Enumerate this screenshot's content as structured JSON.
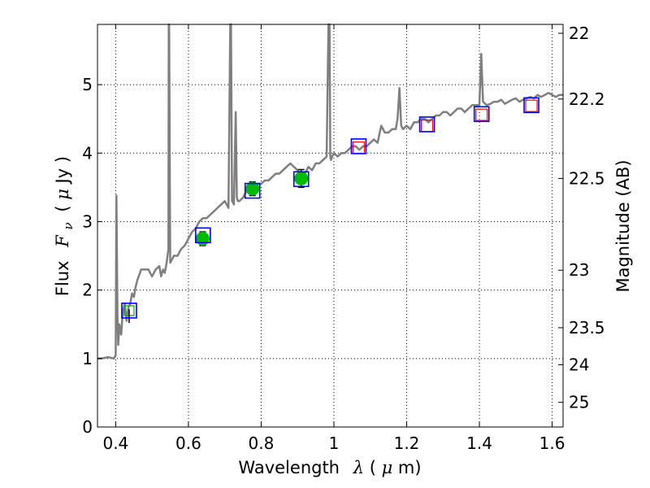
{
  "chart_data": {
    "type": "line",
    "xlabel": "Wavelength",
    "xlabel_symbol": "λ",
    "xlabel_unit_open": " (",
    "xlabel_unit_mu": "μ",
    "xlabel_unit_rest": "m)",
    "ylabel": "Flux",
    "ylabel_symbol": "F",
    "ylabel_symbol_sub": "ν",
    "ylabel_unit_open": "( ",
    "ylabel_unit_mu": "μ",
    "ylabel_unit_rest": "Jy )",
    "ylabel_right": "Magnitude (AB)",
    "xlim": [
      0.35,
      1.63
    ],
    "ylim": [
      0,
      5.88
    ],
    "x_ticks": [
      {
        "value": 0.4,
        "label": "0.4"
      },
      {
        "value": 0.6,
        "label": "0.6"
      },
      {
        "value": 0.8,
        "label": "0.8"
      },
      {
        "value": 1.0,
        "label": "1"
      },
      {
        "value": 1.2,
        "label": "1.2"
      },
      {
        "value": 1.4,
        "label": "1.4"
      },
      {
        "value": 1.6,
        "label": "1.6"
      }
    ],
    "y_ticks": [
      {
        "value": 0,
        "label": "0"
      },
      {
        "value": 1,
        "label": "1"
      },
      {
        "value": 2,
        "label": "2"
      },
      {
        "value": 3,
        "label": "3"
      },
      {
        "value": 4,
        "label": "4"
      },
      {
        "value": 5,
        "label": "5"
      }
    ],
    "right_ticks": [
      {
        "label": "22",
        "flux": 5.75
      },
      {
        "label": "22.2",
        "flux": 4.79
      },
      {
        "label": "22.5",
        "flux": 3.63
      },
      {
        "label": "23",
        "flux": 2.29
      },
      {
        "label": "23.5",
        "flux": 1.45
      },
      {
        "label": "24",
        "flux": 0.91
      },
      {
        "label": "25",
        "flux": 0.36
      }
    ],
    "grid": true,
    "colors": {
      "spectrum": "#7f7f7f",
      "box_model": "#0000ff",
      "box_inner": "#ff0000",
      "point_fill": "#00bb00",
      "errorbar": "#000000",
      "inner_green": "#00aa00"
    },
    "spectrum": {
      "name": "",
      "x": [
        0.35,
        0.36,
        0.38,
        0.395,
        0.4,
        0.402,
        0.405,
        0.407,
        0.41,
        0.415,
        0.42,
        0.425,
        0.43,
        0.435,
        0.44,
        0.445,
        0.45,
        0.455,
        0.46,
        0.47,
        0.48,
        0.49,
        0.5,
        0.51,
        0.52,
        0.525,
        0.53,
        0.535,
        0.54,
        0.545,
        0.546,
        0.547,
        0.55,
        0.555,
        0.56,
        0.57,
        0.58,
        0.59,
        0.6,
        0.61,
        0.62,
        0.63,
        0.64,
        0.65,
        0.66,
        0.67,
        0.68,
        0.69,
        0.7,
        0.71,
        0.715,
        0.717,
        0.72,
        0.725,
        0.73,
        0.733,
        0.736,
        0.74,
        0.75,
        0.76,
        0.77,
        0.78,
        0.79,
        0.8,
        0.81,
        0.82,
        0.83,
        0.84,
        0.85,
        0.86,
        0.87,
        0.88,
        0.89,
        0.9,
        0.91,
        0.92,
        0.93,
        0.94,
        0.95,
        0.96,
        0.97,
        0.98,
        0.985,
        0.988,
        0.99,
        0.992,
        0.995,
        1.0,
        1.01,
        1.02,
        1.03,
        1.04,
        1.05,
        1.06,
        1.07,
        1.08,
        1.09,
        1.1,
        1.11,
        1.12,
        1.13,
        1.14,
        1.15,
        1.16,
        1.17,
        1.175,
        1.18,
        1.185,
        1.19,
        1.2,
        1.21,
        1.22,
        1.23,
        1.24,
        1.25,
        1.26,
        1.27,
        1.28,
        1.29,
        1.3,
        1.31,
        1.32,
        1.33,
        1.34,
        1.35,
        1.36,
        1.37,
        1.38,
        1.39,
        1.4,
        1.405,
        1.41,
        1.42,
        1.43,
        1.44,
        1.45,
        1.46,
        1.47,
        1.48,
        1.49,
        1.5,
        1.51,
        1.52,
        1.53,
        1.54,
        1.55,
        1.56,
        1.57,
        1.58,
        1.59,
        1.6,
        1.61,
        1.62,
        1.63
      ],
      "y": [
        1.0,
        1.0,
        1.02,
        1.0,
        1.05,
        3.38,
        1.6,
        1.2,
        1.5,
        1.35,
        1.7,
        1.8,
        1.55,
        1.75,
        1.8,
        1.95,
        1.9,
        2.05,
        2.15,
        2.3,
        2.3,
        2.3,
        2.2,
        2.3,
        2.35,
        2.2,
        2.3,
        2.25,
        2.4,
        2.6,
        5.9,
        5.9,
        2.4,
        2.45,
        2.5,
        2.5,
        2.6,
        2.65,
        2.75,
        2.85,
        2.9,
        3.0,
        3.05,
        3.05,
        3.1,
        3.15,
        3.2,
        3.25,
        3.3,
        3.2,
        5.9,
        5.9,
        3.3,
        3.25,
        4.6,
        3.35,
        3.3,
        3.3,
        3.35,
        3.45,
        3.5,
        3.45,
        3.55,
        3.55,
        3.6,
        3.6,
        3.65,
        3.7,
        3.7,
        3.75,
        3.8,
        3.85,
        3.8,
        3.75,
        3.7,
        3.7,
        3.8,
        3.75,
        3.85,
        3.85,
        3.9,
        3.95,
        5.9,
        5.9,
        3.95,
        3.9,
        3.95,
        4.0,
        3.95,
        4.0,
        4.0,
        4.05,
        4.1,
        4.1,
        4.05,
        4.1,
        4.1,
        4.15,
        4.2,
        4.15,
        4.4,
        4.3,
        4.3,
        4.35,
        4.35,
        4.5,
        4.95,
        4.4,
        4.35,
        4.4,
        4.35,
        4.45,
        4.45,
        4.5,
        4.5,
        4.45,
        4.5,
        4.55,
        4.55,
        4.6,
        4.6,
        4.55,
        4.6,
        4.65,
        4.65,
        4.6,
        4.65,
        4.7,
        4.7,
        4.7,
        5.45,
        4.75,
        4.7,
        4.72,
        4.75,
        4.75,
        4.78,
        4.72,
        4.75,
        4.78,
        4.8,
        4.75,
        4.78,
        4.8,
        4.82,
        4.8,
        4.85,
        4.82,
        4.85,
        4.88,
        4.85,
        4.82,
        4.85,
        4.85
      ]
    },
    "model_boxes": {
      "x": [
        0.437,
        0.64,
        0.776,
        0.91,
        1.068,
        1.256,
        1.406,
        1.543
      ],
      "y": [
        1.7,
        2.8,
        3.45,
        3.62,
        4.1,
        4.42,
        4.57,
        4.7
      ]
    },
    "inner_boxes_red": {
      "x": [
        1.068,
        1.256,
        1.406,
        1.543
      ],
      "y": [
        4.08,
        4.4,
        4.56,
        4.69
      ]
    },
    "inner_boxes_green": {
      "x": [
        0.437
      ],
      "y": [
        1.7
      ]
    },
    "observed": {
      "x": [
        0.639,
        0.776,
        0.91
      ],
      "y": [
        2.75,
        3.48,
        3.63
      ],
      "yerr": [
        0.1,
        0.1,
        0.13
      ]
    },
    "observed_upper": {
      "x": [
        0.437
      ],
      "y": [
        1.62
      ],
      "yerr": [
        0.1
      ]
    }
  }
}
